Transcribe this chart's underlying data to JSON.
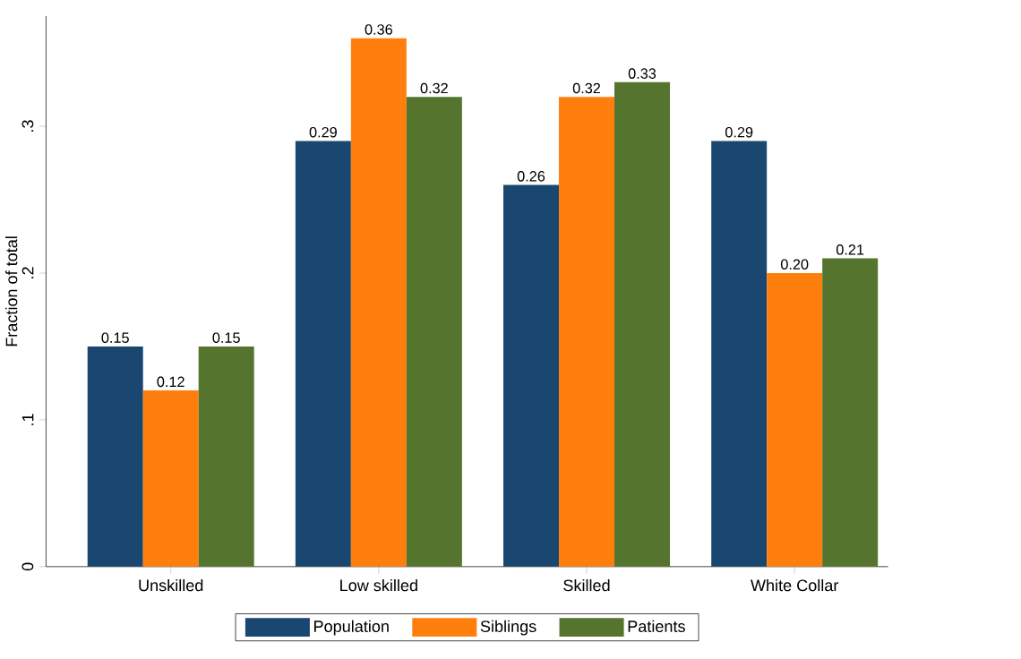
{
  "chart_data": {
    "type": "bar",
    "ylabel": "Fraction of total",
    "categories": [
      "Unskilled",
      "Low skilled",
      "Skilled",
      "White Collar"
    ],
    "series": [
      {
        "name": "Population",
        "color": "#1a476f",
        "values": [
          0.15,
          0.29,
          0.26,
          0.29
        ],
        "value_labels": [
          "0.15",
          "0.29",
          "0.26",
          "0.29"
        ]
      },
      {
        "name": "Siblings",
        "color": "#ff7f0e",
        "values": [
          0.12,
          0.36,
          0.32,
          0.2
        ],
        "value_labels": [
          "0.12",
          "0.36",
          "0.32",
          "0.20"
        ]
      },
      {
        "name": "Patients",
        "color": "#55752f",
        "values": [
          0.15,
          0.32,
          0.33,
          0.21
        ],
        "value_labels": [
          "0.15",
          "0.32",
          "0.33",
          "0.21"
        ]
      }
    ],
    "ylim": [
      0,
      0.375
    ],
    "yticks": [
      {
        "value": 0,
        "label": "0"
      },
      {
        "value": 0.1,
        "label": ".1"
      },
      {
        "value": 0.2,
        "label": ".2"
      },
      {
        "value": 0.3,
        "label": ".3"
      }
    ],
    "grid": false,
    "legend": "bottom"
  }
}
